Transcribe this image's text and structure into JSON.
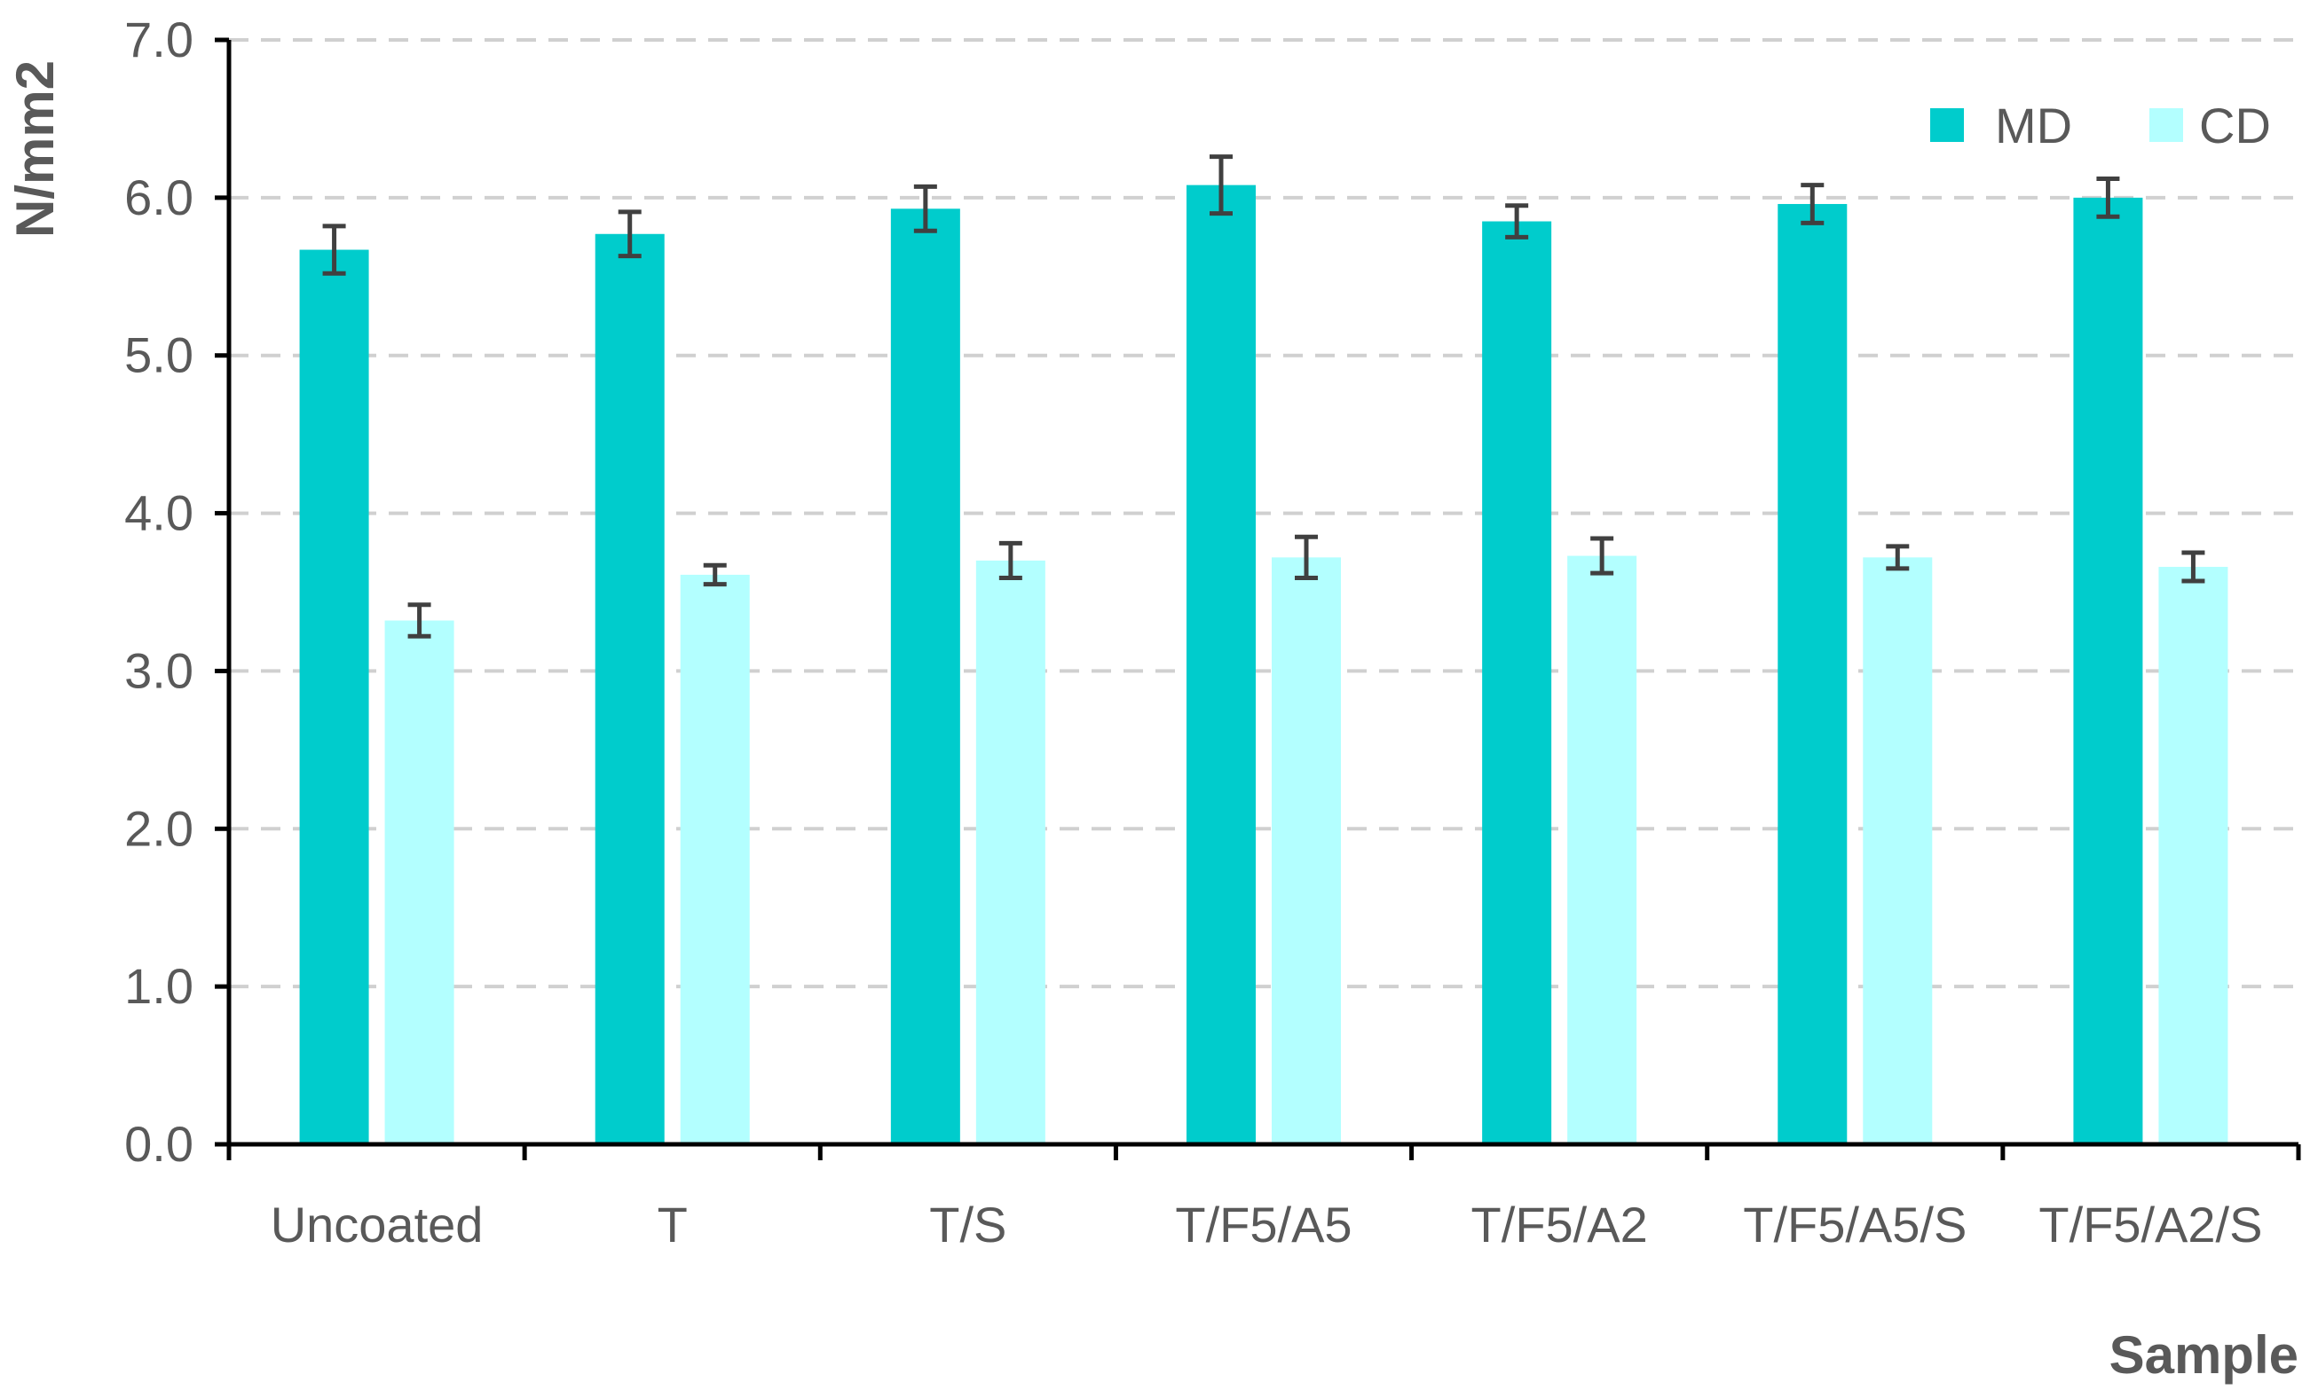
{
  "chart_data": {
    "type": "bar",
    "xlabel": "Sample",
    "ylabel": "N/mm2",
    "ylim": [
      0,
      7
    ],
    "y_ticks": [
      "0.0",
      "1.0",
      "2.0",
      "3.0",
      "4.0",
      "5.0",
      "6.0",
      "7.0"
    ],
    "grid": true,
    "legend_position": "top-right",
    "categories": [
      "Uncoated",
      "T",
      "T/S",
      "T/F5/A5",
      "T/F5/A2",
      "T/F5/A5/S",
      "T/F5/A2/S"
    ],
    "series": [
      {
        "name": "MD",
        "color": "#00CCCC",
        "values": [
          5.67,
          5.77,
          5.93,
          6.08,
          5.85,
          5.96,
          6.0
        ],
        "errors": [
          0.15,
          0.14,
          0.14,
          0.18,
          0.1,
          0.12,
          0.12
        ]
      },
      {
        "name": "CD",
        "color": "#B3FFFF",
        "values": [
          3.32,
          3.61,
          3.7,
          3.72,
          3.73,
          3.72,
          3.66
        ],
        "errors": [
          0.1,
          0.06,
          0.11,
          0.13,
          0.11,
          0.07,
          0.09
        ]
      }
    ]
  }
}
